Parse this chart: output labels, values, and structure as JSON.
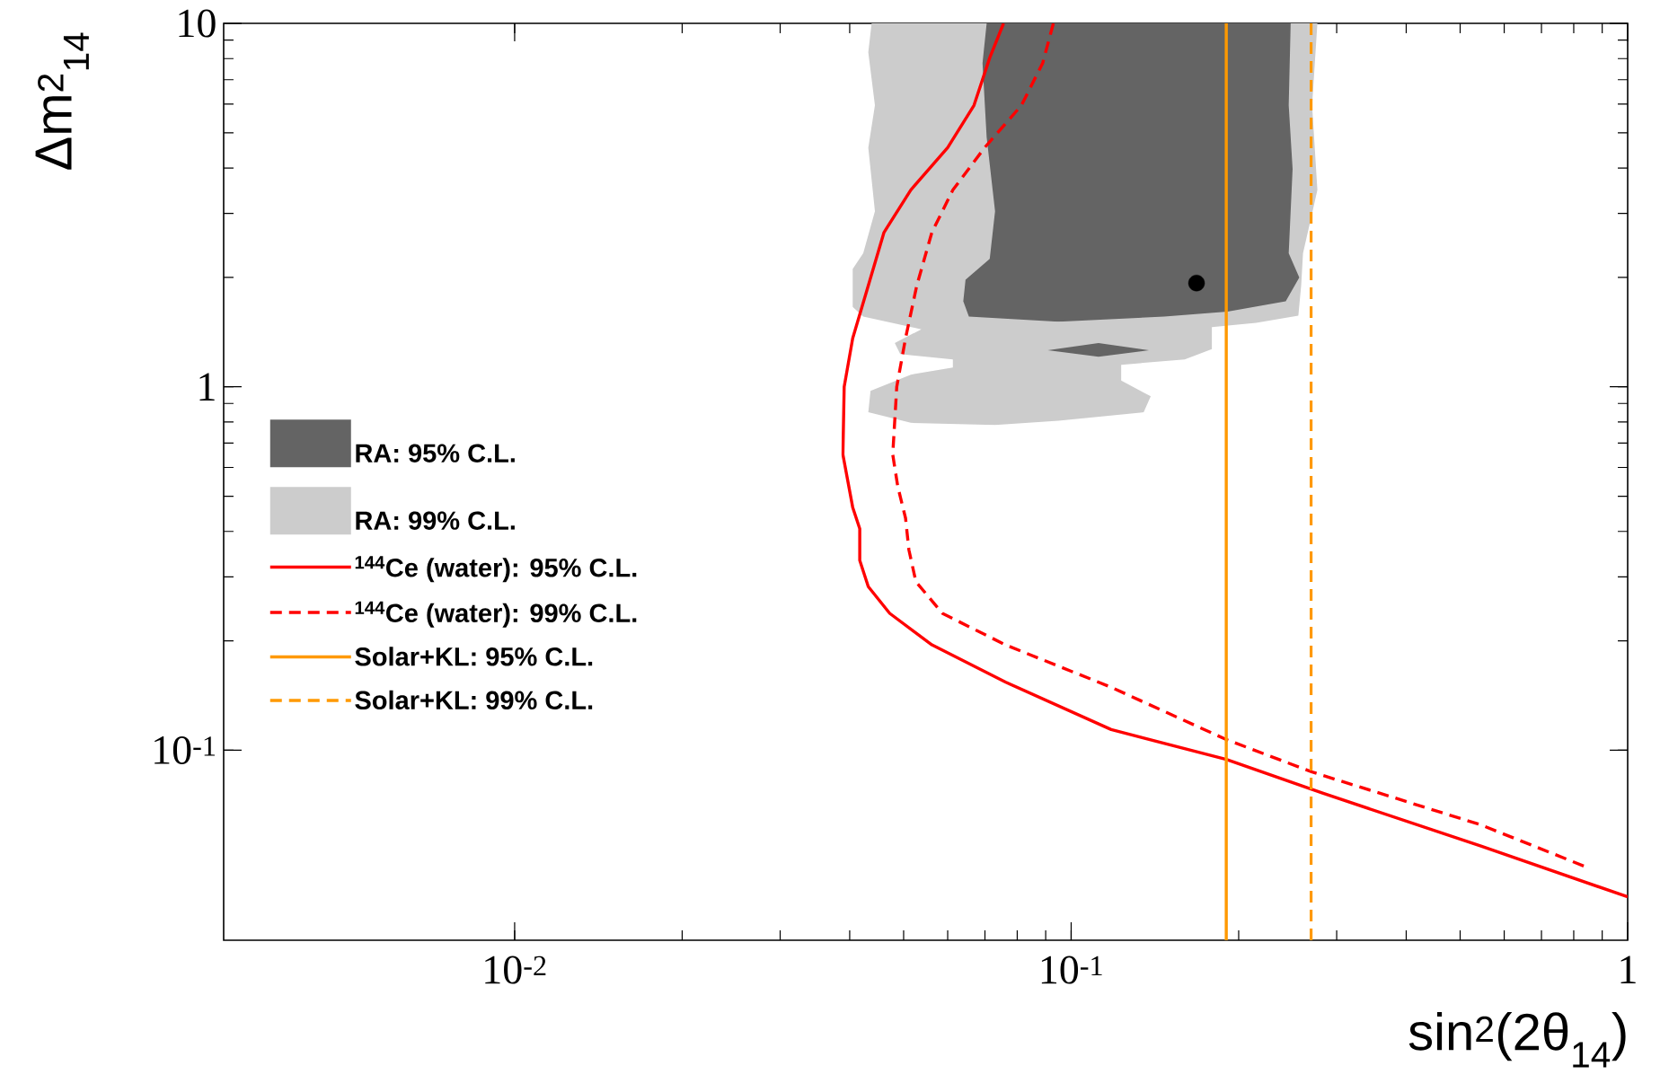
{
  "chart_data": {
    "type": "line",
    "xlabel": "sin$^{2}$(2θ$_{14}$)",
    "ylabel": "Δm$^{2}$$_{14}$",
    "log": "xy",
    "xlim": [
      0.003,
      1
    ],
    "ylim": [
      0.03,
      10
    ],
    "xticks": [
      {
        "value": 0.01,
        "label": "10$^{-2}$"
      },
      {
        "value": 0.1,
        "label": "10$^{-1}$"
      },
      {
        "value": 1,
        "label": "1"
      }
    ],
    "yticks": [
      {
        "value": 0.1,
        "label": "10$^{-1}$"
      },
      {
        "value": 1,
        "label": "1"
      },
      {
        "value": 10,
        "label": "10"
      }
    ],
    "legend": "left",
    "series": [
      {
        "name": "RA: 95% C.L.",
        "type": "area",
        "color": "#646464",
        "x": [
          0.0705,
          0.248,
          0.246,
          0.25,
          0.246,
          0.257,
          0.243,
          0.191,
          0.147,
          0.0949,
          0.0655,
          0.064,
          0.0646,
          0.0714,
          0.073,
          0.0705,
          0.0693,
          null,
          0.0908,
          0.112,
          0.138,
          0.112
        ],
        "values": [
          10,
          10,
          5.95,
          3.98,
          2.33,
          2.0,
          1.72,
          1.61,
          1.56,
          1.51,
          1.56,
          1.72,
          1.97,
          2.25,
          3.04,
          4.86,
          7.78,
          null,
          1.26,
          1.32,
          1.26,
          1.21
        ]
      },
      {
        "name": "RA: 99% C.L.",
        "type": "area",
        "color": "#cccccc",
        "x": [
          0.0438,
          0.277,
          0.271,
          0.277,
          0.261,
          0.259,
          0.256,
          0.215,
          0.179,
          0.179,
          0.16,
          0.123,
          0.123,
          0.139,
          0.135,
          0.0949,
          0.073,
          0.0515,
          0.0432,
          0.0436,
          0.0515,
          0.0613,
          0.0613,
          0.0493,
          0.0482,
          0.0538,
          0.0423,
          0.0405,
          0.0405,
          0.0423,
          0.0444,
          0.0432,
          0.0444,
          0.0432
        ],
        "values": [
          10,
          10,
          5.95,
          3.48,
          2.33,
          1.9,
          1.57,
          1.5,
          1.46,
          1.27,
          1.19,
          1.15,
          1.04,
          0.942,
          0.851,
          0.807,
          0.785,
          0.796,
          0.851,
          0.974,
          1.08,
          1.13,
          1.19,
          1.23,
          1.32,
          1.44,
          1.56,
          1.66,
          2.11,
          2.33,
          3.04,
          4.55,
          5.95,
          8.32
        ]
      },
      {
        "name": "$^{144}$Ce (water): 95% C.L.",
        "color": "#ff0000",
        "line_style": "solid",
        "x": [
          0.0756,
          0.0714,
          0.0669,
          0.06,
          0.0515,
          0.0461,
          0.0432,
          0.0405,
          0.0391,
          0.0389,
          0.0405,
          0.0417,
          0.0417,
          0.0432,
          0.0472,
          0.0562,
          0.0762,
          0.118,
          0.19,
          0.283,
          0.545,
          1.0
        ],
        "values": [
          10,
          8.04,
          5.95,
          4.55,
          3.48,
          2.66,
          1.9,
          1.36,
          1.0,
          0.651,
          0.466,
          0.407,
          0.333,
          0.282,
          0.238,
          0.195,
          0.154,
          0.114,
          0.0944,
          0.0762,
          0.0545,
          0.0395
        ]
      },
      {
        "name": "$^{144}$Ce (water): 99% C.L.",
        "color": "#ff0000",
        "line_style": "dashed",
        "x": [
          0.0929,
          0.0889,
          0.0814,
          0.0699,
          0.0613,
          0.0562,
          0.0528,
          0.0504,
          0.0486,
          0.0478,
          0.0488,
          0.0504,
          0.0511,
          0.0526,
          0.0587,
          0.0762,
          0.118,
          0.19,
          0.271,
          0.545,
          0.843
        ],
        "values": [
          10,
          7.78,
          5.95,
          4.55,
          3.48,
          2.66,
          1.9,
          1.36,
          1.0,
          0.651,
          0.532,
          0.435,
          0.356,
          0.291,
          0.238,
          0.195,
          0.149,
          0.107,
          0.0871,
          0.0623,
          0.0477
        ]
      },
      {
        "name": "Solar+KL: 95% C.L.",
        "color": "#ff9900",
        "line_style": "solid",
        "x": [
          0.19,
          0.19
        ],
        "values": [
          0.03,
          10
        ]
      },
      {
        "name": "Solar+KL: 99% C.L.",
        "color": "#ff9900",
        "line_style": "dashed",
        "x": [
          0.27,
          0.27
        ],
        "values": [
          0.03,
          10
        ]
      },
      {
        "type": "scatter",
        "color": "#000000",
        "x": [
          0.168
        ],
        "values": [
          1.93
        ]
      }
    ]
  }
}
